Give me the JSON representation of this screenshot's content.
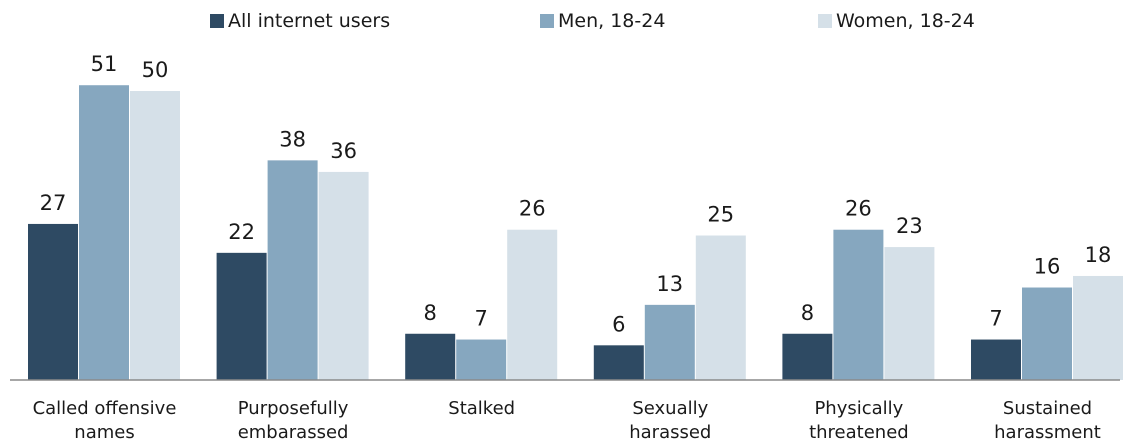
{
  "chart_data": {
    "type": "bar",
    "title": "",
    "xlabel": "",
    "ylabel": "",
    "grid": false,
    "legend_position": "top",
    "categories": [
      [
        "Called offensive",
        "names"
      ],
      [
        "Purposefully",
        "embarassed"
      ],
      [
        "Stalked"
      ],
      [
        "Sexually",
        "harassed"
      ],
      [
        "Physically",
        "threatened"
      ],
      [
        "Sustained",
        "harassment"
      ]
    ],
    "series": [
      {
        "name": "All internet users",
        "color": "#2e4a63",
        "values": [
          27,
          22,
          8,
          6,
          8,
          7
        ]
      },
      {
        "name": "Men, 18-24",
        "color": "#86a7bf",
        "values": [
          51,
          38,
          7,
          13,
          26,
          16
        ]
      },
      {
        "name": "Women, 18-24",
        "color": "#d5e0e8",
        "values": [
          50,
          36,
          26,
          25,
          23,
          18
        ]
      }
    ],
    "ylim": [
      0,
      56
    ]
  }
}
